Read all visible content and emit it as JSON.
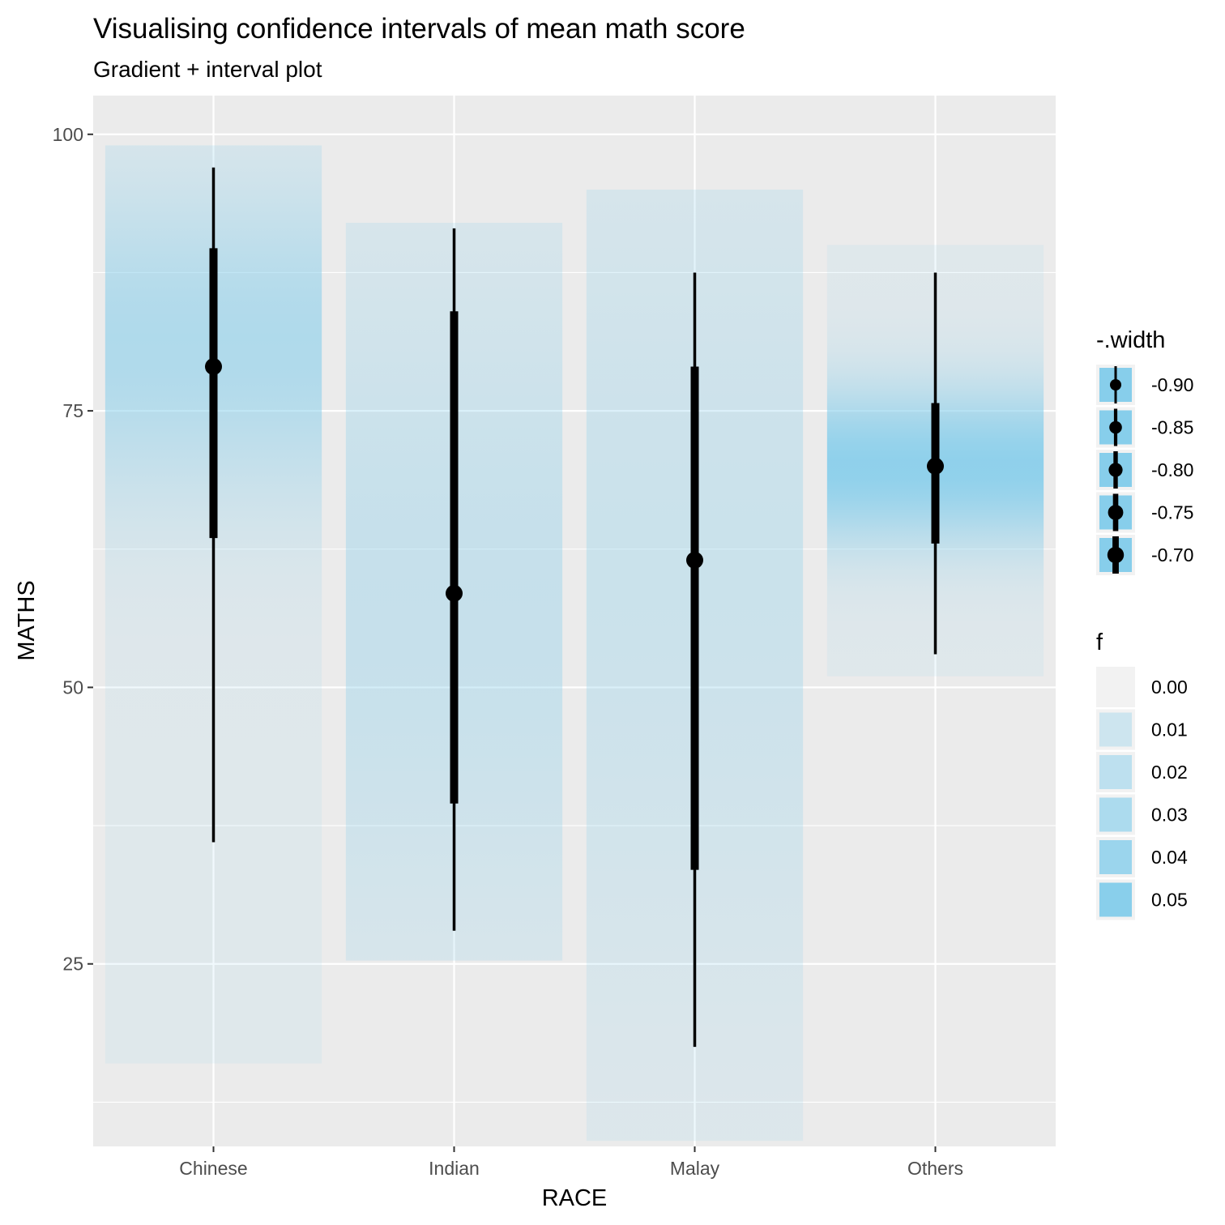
{
  "chart_data": {
    "type": "gradient-interval",
    "title": "Visualising confidence intervals of mean math score",
    "subtitle": "Gradient + interval plot",
    "xlabel": "RACE",
    "ylabel": "MATHS",
    "categories": [
      "Chinese",
      "Indian",
      "Malay",
      "Others"
    ],
    "ylim": [
      5,
      100
    ],
    "yticks": [
      25,
      50,
      75,
      100
    ],
    "grid": true,
    "series": [
      {
        "category": "Chinese",
        "point": 79,
        "inner": [
          63.5,
          89.7
        ],
        "outer": [
          36,
          97
        ],
        "range": [
          16,
          99
        ],
        "peak": 81,
        "peak_f": 0.03,
        "spread": 10
      },
      {
        "category": "Indian",
        "point": 58.5,
        "inner": [
          39.5,
          84
        ],
        "outer": [
          28,
          91.5
        ],
        "range": [
          25.3,
          92
        ],
        "peak": 58.5,
        "peak_f": 0.016,
        "spread": 22
      },
      {
        "category": "Malay",
        "point": 61.5,
        "inner": [
          33.5,
          79
        ],
        "outer": [
          17.5,
          87.5
        ],
        "range": [
          9,
          95
        ],
        "peak": 61.5,
        "peak_f": 0.013,
        "spread": 26
      },
      {
        "category": "Others",
        "point": 70,
        "inner": [
          63,
          75.7
        ],
        "outer": [
          53,
          87.5
        ],
        "range": [
          51,
          90
        ],
        "peak": 70,
        "peak_f": 0.05,
        "spread": 5
      }
    ],
    "legends": [
      {
        "title": "-.width",
        "entries": [
          "-0.90",
          "-0.85",
          "-0.80",
          "-0.75",
          "-0.70"
        ]
      },
      {
        "title": "f",
        "entries": [
          "0.00",
          "0.01",
          "0.02",
          "0.03",
          "0.04",
          "0.05"
        ]
      }
    ],
    "colors": {
      "panel": "#ebebeb",
      "grid": "#ffffff",
      "fill": "#87ceeb",
      "interval": "#000000"
    }
  }
}
